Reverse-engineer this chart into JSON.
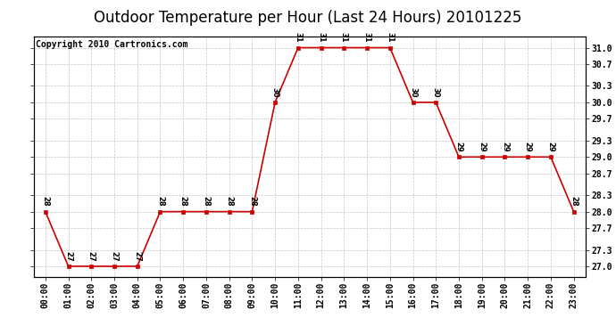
{
  "title": "Outdoor Temperature per Hour (Last 24 Hours) 20101225",
  "copyright": "Copyright 2010 Cartronics.com",
  "hours": [
    "00:00",
    "01:00",
    "02:00",
    "03:00",
    "04:00",
    "05:00",
    "06:00",
    "07:00",
    "08:00",
    "09:00",
    "10:00",
    "11:00",
    "12:00",
    "13:00",
    "14:00",
    "15:00",
    "16:00",
    "17:00",
    "18:00",
    "19:00",
    "20:00",
    "21:00",
    "22:00",
    "23:00"
  ],
  "values": [
    28,
    27,
    27,
    27,
    27,
    28,
    28,
    28,
    28,
    28,
    30,
    31,
    31,
    31,
    31,
    31,
    30,
    30,
    29,
    29,
    29,
    29,
    29,
    28
  ],
  "line_color": "#cc0000",
  "marker_color": "#cc0000",
  "bg_color": "#ffffff",
  "grid_color": "#c0c0c0",
  "ylim_min": 27.0,
  "ylim_max": 31.0,
  "yticks": [
    27.0,
    27.3,
    27.7,
    28.0,
    28.3,
    28.7,
    29.0,
    29.3,
    29.7,
    30.0,
    30.3,
    30.7,
    31.0
  ],
  "ytick_labels": [
    "27.0",
    "27.3",
    "27.7",
    "28.0",
    "28.3",
    "28.7",
    "29.0",
    "29.3",
    "29.7",
    "30.0",
    "30.3",
    "30.7",
    "31.0"
  ],
  "title_fontsize": 12,
  "label_fontsize": 7,
  "copyright_fontsize": 7,
  "annotation_fontsize": 6
}
